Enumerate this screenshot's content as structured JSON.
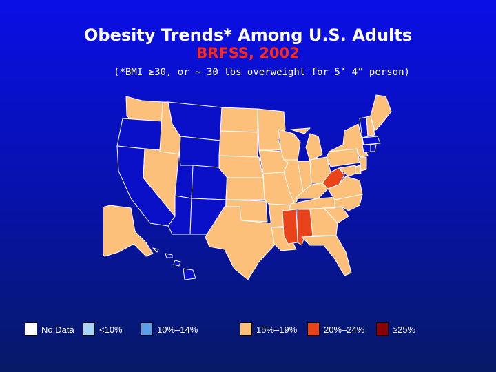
{
  "title": "Obesity Trends* Among U.S. Adults",
  "subtitle": "BRFSS, 2002",
  "note": "(*BMI ≥30, or ~ 30 lbs overweight for 5’ 4” person)",
  "colors": {
    "no_data": "#ffffff",
    "lt10": "#aad4f5",
    "10_14": "#5c9ee8",
    "15_19": "#fcc07a",
    "20_24": "#e8431a",
    "ge25": "#8b0000",
    "state_border": "#ffffff",
    "dark_state": "#0a0fc8"
  },
  "legend": [
    {
      "label": "No Data",
      "color_key": "no_data"
    },
    {
      "label": "<10%",
      "color_key": "lt10"
    },
    {
      "label": "10%–14%",
      "color_key": "10_14"
    },
    {
      "label": "15%–19%",
      "color_key": "15_19"
    },
    {
      "label": "20%–24%",
      "color_key": "20_24"
    },
    {
      "label": "≥25%",
      "color_key": "ge25"
    }
  ],
  "states": [
    {
      "code": "WA",
      "category": "15_19"
    },
    {
      "code": "OR",
      "category": "dark"
    },
    {
      "code": "CA",
      "category": "dark"
    },
    {
      "code": "NV",
      "category": "15_19"
    },
    {
      "code": "ID",
      "category": "15_19"
    },
    {
      "code": "MT",
      "category": "dark"
    },
    {
      "code": "WY",
      "category": "dark"
    },
    {
      "code": "UT",
      "category": "dark"
    },
    {
      "code": "AZ",
      "category": "dark"
    },
    {
      "code": "CO",
      "category": "dark"
    },
    {
      "code": "NM",
      "category": "dark"
    },
    {
      "code": "ND",
      "category": "15_19"
    },
    {
      "code": "SD",
      "category": "15_19"
    },
    {
      "code": "NE",
      "category": "15_19"
    },
    {
      "code": "KS",
      "category": "15_19"
    },
    {
      "code": "OK",
      "category": "15_19"
    },
    {
      "code": "TX",
      "category": "15_19"
    },
    {
      "code": "MN",
      "category": "15_19"
    },
    {
      "code": "IA",
      "category": "15_19"
    },
    {
      "code": "MO",
      "category": "15_19"
    },
    {
      "code": "AR",
      "category": "15_19"
    },
    {
      "code": "LA",
      "category": "15_19"
    },
    {
      "code": "WI",
      "category": "15_19"
    },
    {
      "code": "IL",
      "category": "15_19"
    },
    {
      "code": "MI",
      "category": "15_19"
    },
    {
      "code": "IN",
      "category": "15_19"
    },
    {
      "code": "OH",
      "category": "15_19"
    },
    {
      "code": "KY",
      "category": "15_19"
    },
    {
      "code": "TN",
      "category": "15_19"
    },
    {
      "code": "MS",
      "category": "20_24"
    },
    {
      "code": "AL",
      "category": "20_24"
    },
    {
      "code": "GA",
      "category": "15_19"
    },
    {
      "code": "FL",
      "category": "15_19"
    },
    {
      "code": "SC",
      "category": "15_19"
    },
    {
      "code": "NC",
      "category": "15_19"
    },
    {
      "code": "VA",
      "category": "15_19"
    },
    {
      "code": "WV",
      "category": "20_24"
    },
    {
      "code": "PA",
      "category": "15_19"
    },
    {
      "code": "NY",
      "category": "15_19"
    },
    {
      "code": "VT",
      "category": "dark"
    },
    {
      "code": "NH",
      "category": "15_19"
    },
    {
      "code": "ME",
      "category": "15_19"
    },
    {
      "code": "MA",
      "category": "dark"
    },
    {
      "code": "CT",
      "category": "dark"
    },
    {
      "code": "RI",
      "category": "dark"
    },
    {
      "code": "NJ",
      "category": "15_19"
    },
    {
      "code": "DE",
      "category": "15_19"
    },
    {
      "code": "MD",
      "category": "15_19"
    },
    {
      "code": "AK",
      "category": "15_19"
    },
    {
      "code": "HI",
      "category": "dark"
    }
  ]
}
